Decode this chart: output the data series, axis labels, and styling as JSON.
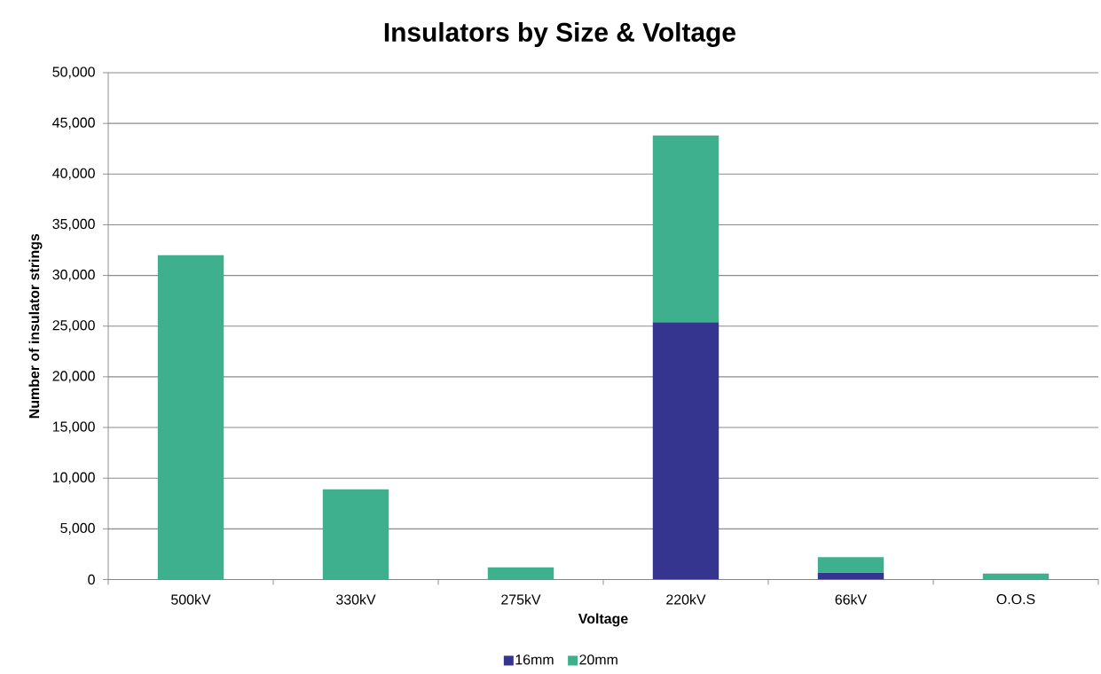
{
  "chart_data": {
    "type": "bar",
    "title": "Insulators by Size & Voltage",
    "xlabel": "Voltage",
    "ylabel": "Number of insulator strings",
    "categories": [
      "500kV",
      "330kV",
      "275kV",
      "220kV",
      "66kV",
      "O.O.S"
    ],
    "stacked": true,
    "series": [
      {
        "name": "16mm",
        "color": "#35358f",
        "values": [
          null,
          null,
          null,
          25400,
          700,
          null
        ]
      },
      {
        "name": "20mm",
        "color": "#3eb08e",
        "values": [
          32000,
          8900,
          1200,
          18400,
          1500,
          600
        ]
      }
    ],
    "ylim": [
      0,
      50000
    ],
    "yticks": [
      0,
      {
        "value": 5000,
        "label": "5,000"
      },
      {
        "value": 10000,
        "label": "10,000"
      },
      {
        "value": 15000,
        "label": "15,000"
      },
      {
        "value": 20000,
        "label": "20,000"
      },
      {
        "value": 25000,
        "label": "25,000"
      },
      {
        "value": 30000,
        "label": "30,000"
      },
      {
        "value": 35000,
        "label": "35,000"
      },
      {
        "value": 40000,
        "label": "40,000"
      },
      {
        "value": 45000,
        "label": "45,000"
      },
      {
        "value": 50000,
        "label": "50,000"
      }
    ],
    "grid": "y",
    "legend": "bottom"
  }
}
